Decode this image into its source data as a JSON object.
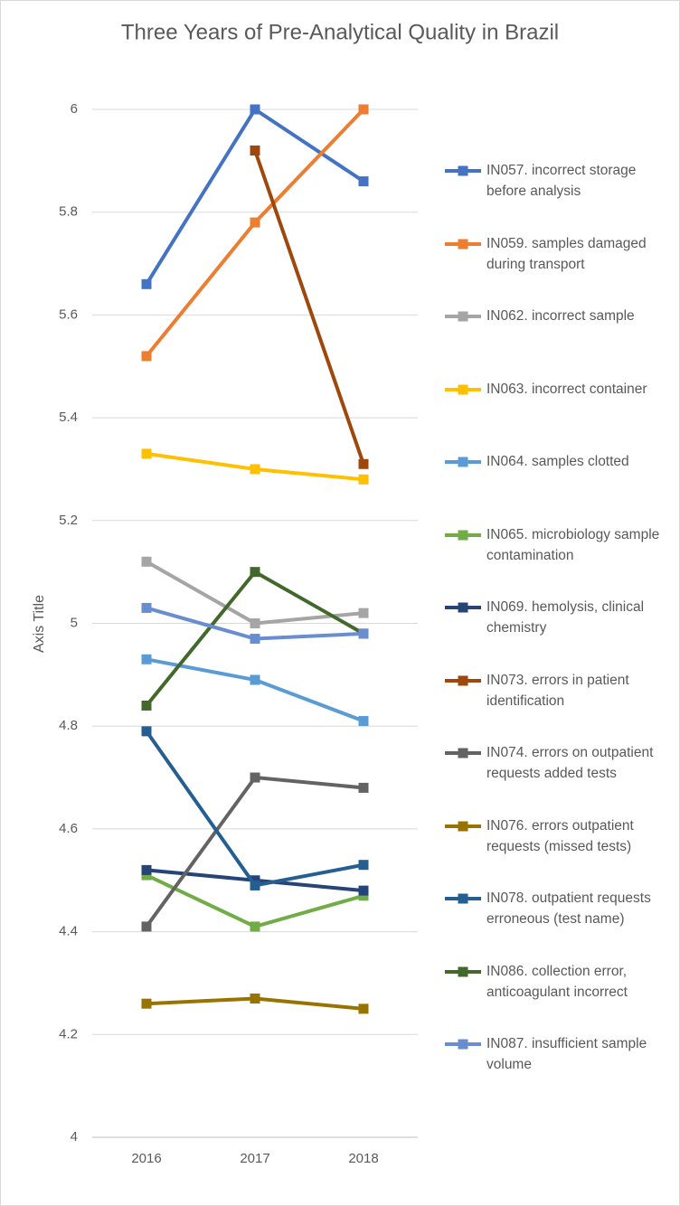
{
  "chart_data": {
    "type": "line",
    "title": "Three Years of Pre-Analytical Quality in Brazil",
    "y_label": "Axis Title",
    "categories": [
      "2016",
      "2017",
      "2018"
    ],
    "ylim": [
      4,
      6
    ],
    "yticks": [
      4,
      4.2,
      4.4,
      4.6,
      4.8,
      5,
      5.2,
      5.4,
      5.6,
      5.8,
      6
    ],
    "grid": true,
    "legend": "right",
    "series": [
      {
        "name": "IN057. incorrect storage before analysis",
        "color": "#4472c4",
        "values": [
          5.66,
          6.0,
          5.86
        ]
      },
      {
        "name": "IN059. samples damaged during transport",
        "color": "#ed7d31",
        "values": [
          5.52,
          5.78,
          6.0
        ]
      },
      {
        "name": "IN062. incorrect sample",
        "color": "#a5a5a5",
        "values": [
          5.12,
          5.0,
          5.02
        ]
      },
      {
        "name": "IN063. incorrect container",
        "color": "#ffc000",
        "values": [
          5.33,
          5.3,
          5.28
        ]
      },
      {
        "name": "IN064. samples clotted",
        "color": "#5b9bd5",
        "values": [
          4.93,
          4.89,
          4.81
        ]
      },
      {
        "name": "IN065. microbiology sample contamination",
        "color": "#70ad47",
        "values": [
          4.51,
          4.41,
          4.47
        ]
      },
      {
        "name": "IN069. hemolysis, clinical chemistry",
        "color": "#264478",
        "values": [
          4.52,
          4.5,
          4.48
        ]
      },
      {
        "name": "IN073. errors in patient identification",
        "color": "#9e480e",
        "values": [
          null,
          5.92,
          5.31
        ]
      },
      {
        "name": "IN074. errors on outpatient requests added tests",
        "color": "#636363",
        "values": [
          4.41,
          4.7,
          4.68
        ]
      },
      {
        "name": "IN076. errors outpatient requests (missed tests)",
        "color": "#997300",
        "values": [
          4.26,
          4.27,
          4.25
        ]
      },
      {
        "name": "IN078. outpatient requests erroneous (test name)",
        "color": "#255e91",
        "values": [
          4.79,
          4.49,
          4.53
        ]
      },
      {
        "name": "IN086. collection error, anticoagulant incorrect",
        "color": "#43682b",
        "values": [
          4.84,
          5.1,
          4.98
        ]
      },
      {
        "name": "IN087. insufficient sample volume",
        "color": "#698ed0",
        "values": [
          5.03,
          4.97,
          4.98
        ]
      }
    ]
  }
}
